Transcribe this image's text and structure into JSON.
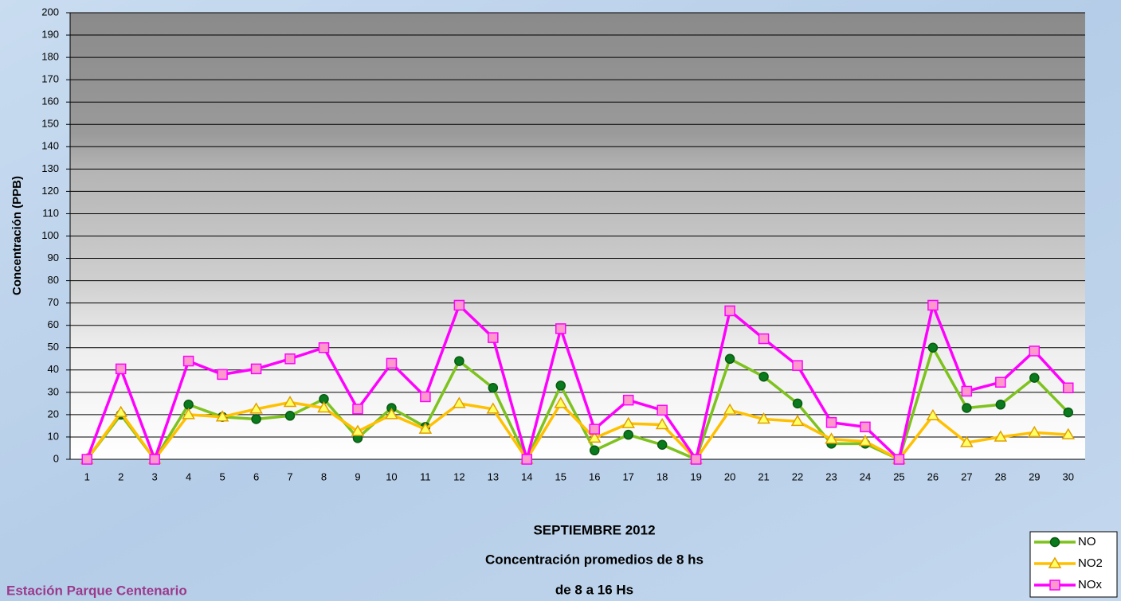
{
  "chart_data": {
    "type": "line",
    "title_lines": [
      "SEPTIEMBRE 2012",
      "Concentración promedios de 8 hs",
      "de 8 a 16 Hs"
    ],
    "y_label": "Concentración (PPB)",
    "categories": [
      "1",
      "2",
      "3",
      "4",
      "5",
      "6",
      "7",
      "8",
      "9",
      "10",
      "11",
      "12",
      "13",
      "14",
      "15",
      "16",
      "17",
      "18",
      "19",
      "20",
      "21",
      "22",
      "23",
      "24",
      "25",
      "26",
      "27",
      "28",
      "29",
      "30"
    ],
    "series": [
      {
        "name": "NO",
        "color": "#7dc21e",
        "marker": "circle",
        "marker_color": "#0a7a1e",
        "values": [
          0,
          20,
          0,
          24.5,
          19,
          18,
          19.5,
          27,
          9.5,
          23,
          14.5,
          44,
          32,
          0,
          33,
          4,
          11,
          6.5,
          0,
          45,
          37,
          25,
          7,
          7,
          0,
          50,
          23,
          24.5,
          36.5,
          21
        ]
      },
      {
        "name": "NO2",
        "color": "#ffc000",
        "marker": "triangle",
        "marker_color": "#ffff66",
        "values": [
          0,
          21,
          0,
          20,
          19,
          22.5,
          25.5,
          23,
          12.5,
          20,
          13.5,
          25,
          22.5,
          0,
          25,
          9.5,
          16,
          15.5,
          0,
          22,
          18,
          17,
          9,
          8,
          0,
          19.5,
          7.5,
          10,
          12,
          11
        ]
      },
      {
        "name": "NOx",
        "color": "#ff00ff",
        "marker": "square",
        "marker_color": "#ff99cc",
        "values": [
          0,
          40.5,
          0,
          44,
          38,
          40.5,
          45,
          50,
          22.5,
          43,
          28,
          69,
          54.5,
          0,
          58.5,
          13.5,
          26.5,
          22,
          0,
          66.5,
          54,
          42,
          16.5,
          14.5,
          0,
          69,
          30.5,
          34.5,
          48.5,
          32
        ]
      }
    ],
    "ylim": [
      0,
      200
    ],
    "yticks": [
      0,
      10,
      20,
      30,
      40,
      50,
      60,
      70,
      80,
      90,
      100,
      110,
      120,
      130,
      140,
      150,
      160,
      170,
      180,
      190,
      200
    ],
    "grid": true,
    "legend": "bottom-right"
  },
  "footer": "Estación Parque Centenario"
}
